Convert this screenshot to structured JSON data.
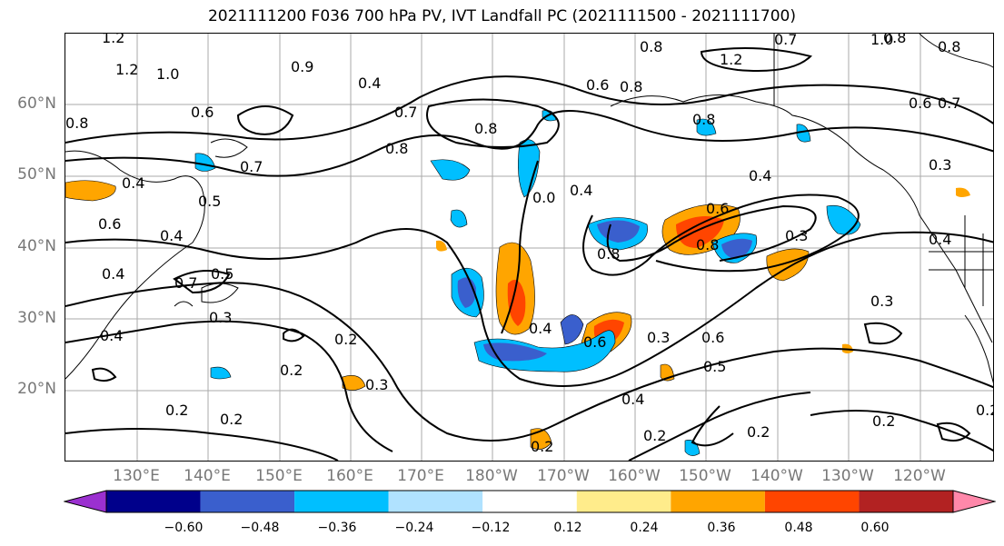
{
  "title": "2021111200 F036 700 hPa PV, IVT Landfall PC (2021111500 - 2021111700)",
  "lat_labels": [
    "60°N",
    "50°N",
    "40°N",
    "30°N",
    "20°N"
  ],
  "lon_labels": [
    "130°E",
    "140°E",
    "150°E",
    "160°E",
    "170°E",
    "180°W",
    "170°W",
    "160°W",
    "150°W",
    "140°W",
    "130°W",
    "120°W"
  ],
  "colorbar": {
    "ticks": [
      "−0.60",
      "−0.48",
      "−0.36",
      "−0.24",
      "−0.12",
      "0.12",
      "0.24",
      "0.36",
      "0.48",
      "0.60"
    ],
    "colors": [
      "#9b30d0",
      "#00008b",
      "#3a5fcd",
      "#00bfff",
      "#b0e2ff",
      "#ffffff",
      "#ffec8b",
      "#ffa500",
      "#ff4500",
      "#b22222",
      "#ff88aa"
    ]
  },
  "contour_labels": [
    "1.2",
    "1.2",
    "1.0",
    "0.9",
    "0.8",
    "0.4",
    "0.7",
    "0.6",
    "0.8",
    "0.7",
    "0.8",
    "0.8",
    "0.6",
    "1.2",
    "0.8",
    "0.7",
    "0.6",
    "0.7",
    "0.8",
    "0.3",
    "0.5",
    "0.4",
    "0.4",
    "0.6",
    "0.4",
    "0.5",
    "0.7",
    "0.4",
    "0.4",
    "0.0",
    "0.6",
    "0.8",
    "0.3",
    "0.8",
    "0.4",
    "0.3",
    "0.4",
    "0.6",
    "0.3",
    "0.2",
    "0.2",
    "0.3",
    "0.4",
    "0.5",
    "0.4",
    "0.2",
    "0.2",
    "0.2",
    "0.2",
    "0.2",
    "0.2",
    "0.2",
    "0.3",
    "0.8",
    "0.6",
    "1.0",
    "0.8"
  ]
}
